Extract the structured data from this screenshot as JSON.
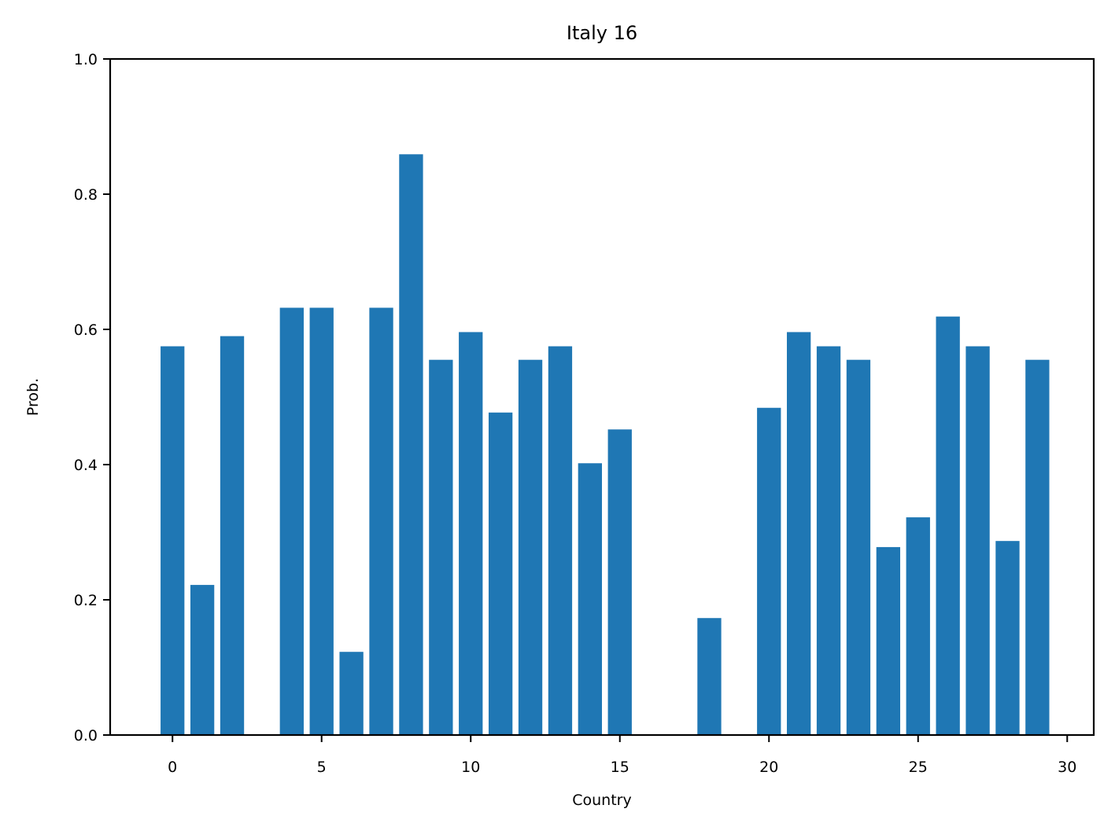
{
  "chart_data": {
    "type": "bar",
    "title": "Italy 16",
    "xlabel": "Country",
    "ylabel": "Prob.",
    "x": [
      0,
      1,
      2,
      3,
      4,
      5,
      6,
      7,
      8,
      9,
      10,
      11,
      12,
      13,
      14,
      15,
      16,
      17,
      18,
      19,
      20,
      21,
      22,
      23,
      24,
      25,
      26,
      27,
      28,
      29
    ],
    "values": [
      0.575,
      0.222,
      0.59,
      0.0,
      0.632,
      0.632,
      0.123,
      0.632,
      0.859,
      0.555,
      0.596,
      0.477,
      0.555,
      0.575,
      0.402,
      0.452,
      0.0,
      0.0,
      0.173,
      0.0,
      0.484,
      0.596,
      0.575,
      0.555,
      0.278,
      0.322,
      0.619,
      0.575,
      0.287,
      0.555
    ],
    "xlim": [
      -2.09,
      30.89
    ],
    "ylim": [
      0,
      1.0
    ],
    "xticks": [
      "0",
      "5",
      "10",
      "15",
      "20",
      "25",
      "30"
    ],
    "xtick_values": [
      0,
      5,
      10,
      15,
      20,
      25,
      30
    ],
    "yticks": [
      "0.0",
      "0.2",
      "0.4",
      "0.6",
      "0.8",
      "1.0"
    ],
    "ytick_values": [
      0,
      0.2,
      0.4,
      0.6,
      0.8,
      1.0
    ],
    "bar_width": 0.8,
    "grid": false,
    "legend": "none",
    "bar_color": "#1f77b4"
  }
}
